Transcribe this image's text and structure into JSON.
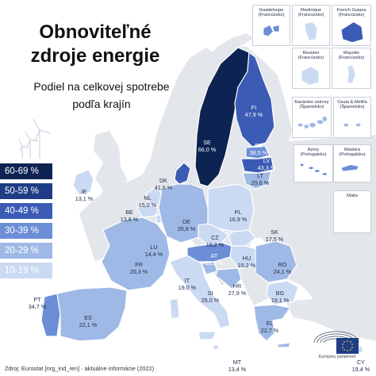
{
  "title": "Obnoviteľné zdroje energie",
  "subtitle": "Podiel na celkovej spotrebe podľa krajín",
  "legend": [
    {
      "label": "60-69 %",
      "color": "#0d2352"
    },
    {
      "label": "50-59 %",
      "color": "#1f3d86"
    },
    {
      "label": "40-49 %",
      "color": "#3b5bb5"
    },
    {
      "label": "30-39 %",
      "color": "#6c8ed6"
    },
    {
      "label": "20-29 %",
      "color": "#9fb9e6"
    },
    {
      "label": "10-19 %",
      "color": "#cbdaf3"
    }
  ],
  "countries": [
    {
      "code": "SE",
      "value": "66,0 %",
      "level": 0
    },
    {
      "code": "FI",
      "value": "47,9 %",
      "level": 2
    },
    {
      "code": "EE",
      "value": "38,5 %",
      "level": 3
    },
    {
      "code": "LV",
      "value": "43,3 %",
      "level": 2
    },
    {
      "code": "LT",
      "value": "29,6 %",
      "level": 4
    },
    {
      "code": "DK",
      "value": "41,6 %",
      "level": 2
    },
    {
      "code": "IE",
      "value": "13,1 %",
      "level": 5
    },
    {
      "code": "NL",
      "value": "15,0 %",
      "level": 5
    },
    {
      "code": "BE",
      "value": "13,8 %",
      "level": 5
    },
    {
      "code": "LU",
      "value": "14,4 %",
      "level": 5
    },
    {
      "code": "DE",
      "value": "20,8 %",
      "level": 4
    },
    {
      "code": "PL",
      "value": "16,9 %",
      "level": 5
    },
    {
      "code": "CZ",
      "value": "18,2 %",
      "level": 5
    },
    {
      "code": "SK",
      "value": "17,5 %",
      "level": 5
    },
    {
      "code": "FR",
      "value": "20,3 %",
      "level": 4
    },
    {
      "code": "AT",
      "value": "33,8 %",
      "level": 3
    },
    {
      "code": "HU",
      "value": "15,2 %",
      "level": 5
    },
    {
      "code": "RO",
      "value": "24,1 %",
      "level": 4
    },
    {
      "code": "SI",
      "value": "25,0 %",
      "level": 4
    },
    {
      "code": "HR",
      "value": "27,9 %",
      "level": 4
    },
    {
      "code": "IT",
      "value": "19,0 %",
      "level": 5
    },
    {
      "code": "BG",
      "value": "19,1 %",
      "level": 5
    },
    {
      "code": "PT",
      "value": "34,7 %",
      "level": 3
    },
    {
      "code": "ES",
      "value": "22,1 %",
      "level": 4
    },
    {
      "code": "EL",
      "value": "22,7 %",
      "level": 4
    },
    {
      "code": "MT",
      "value": "13,4 %",
      "level": 5
    },
    {
      "code": "CY",
      "value": "19,4 %",
      "level": 5
    }
  ],
  "insets": [
    {
      "name": "Guadeloupe (Francúzsko)"
    },
    {
      "name": "Martinique (Francúzsko)"
    },
    {
      "name": "French Guiana (Francúzsko)"
    },
    {
      "name": "Reunion (Francúzsko)"
    },
    {
      "name": "Mayotte (Francúzsko)"
    },
    {
      "name": "Kanárske ostrovy (Španielsko)"
    },
    {
      "name": "Ceuta & Melilla (Španielsko)"
    },
    {
      "name": "Azory (Portugalsko)"
    },
    {
      "name": "Madeira (Portugalsko)"
    },
    {
      "name": "Malta"
    }
  ],
  "footer": "Zdroj: Eurostat [nrg_ind_ren] · aktuálne informácie (2022)",
  "logo_text": "Európsky parlament",
  "colors": {
    "non_eu": "#e3e6ea",
    "sea": "#ffffff",
    "border": "#ffffff"
  }
}
